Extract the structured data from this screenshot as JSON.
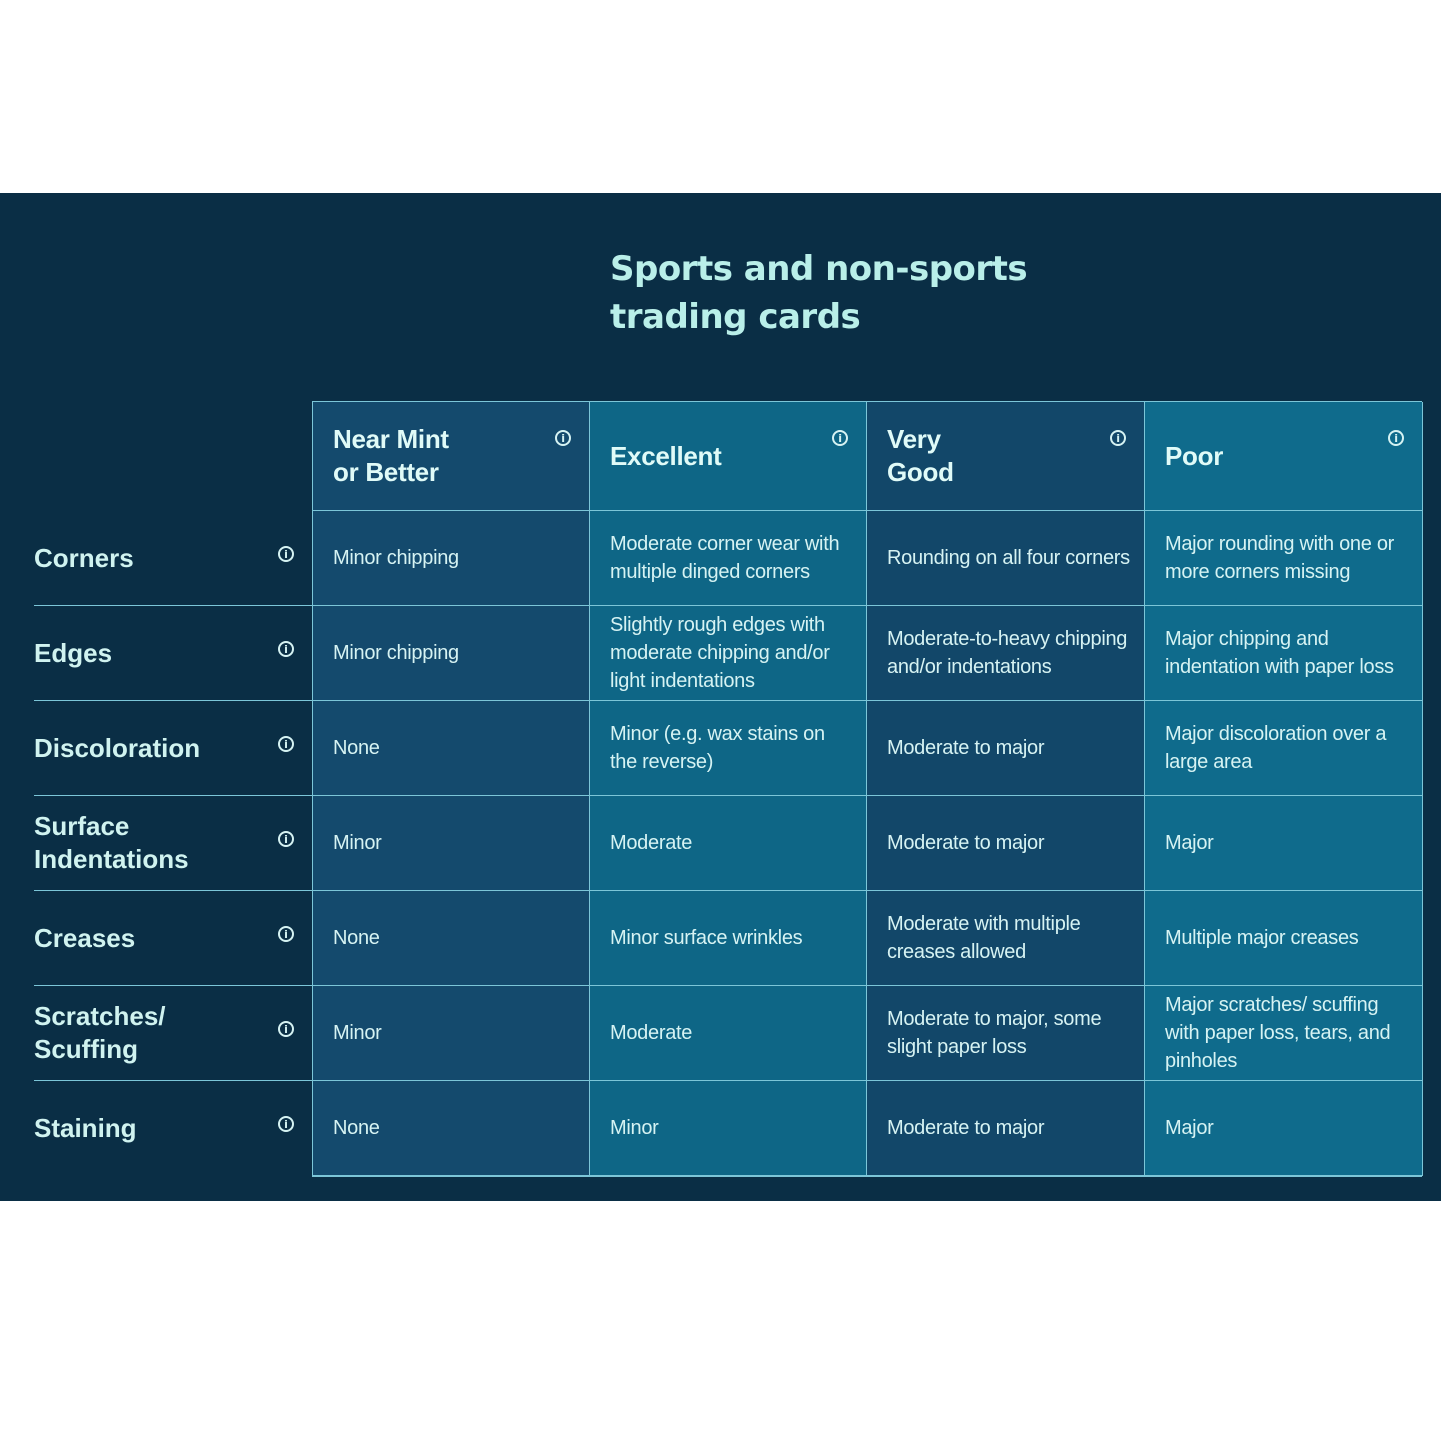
{
  "title_lines": [
    "Sports and non-sports",
    "trading cards"
  ],
  "columns": [
    "Near Mint or Better",
    "Excellent",
    "Very Good",
    "Poor"
  ],
  "column_lines": [
    [
      "Near Mint",
      "or Better"
    ],
    [
      "Excellent"
    ],
    [
      "Very",
      "Good"
    ],
    [
      "Poor"
    ]
  ],
  "rows": [
    {
      "label_lines": [
        "Corners"
      ],
      "cells": [
        "Minor chipping",
        "Moderate corner wear with multiple dinged corners",
        "Rounding on all four corners",
        "Major rounding with one or more corners missing"
      ]
    },
    {
      "label_lines": [
        "Edges"
      ],
      "cells": [
        "Minor chipping",
        "Slightly rough edges with moderate chipping and/or light indentations",
        "Moderate-to-heavy chipping and/or indentations",
        "Major chipping and indentation with paper loss"
      ]
    },
    {
      "label_lines": [
        "Discoloration"
      ],
      "cells": [
        "None",
        "Minor (e.g. wax stains on the reverse)",
        "Moderate to major",
        "Major discoloration over a large area"
      ]
    },
    {
      "label_lines": [
        "Surface",
        "Indentations"
      ],
      "cells": [
        "Minor",
        "Moderate",
        "Moderate to major",
        "Major"
      ]
    },
    {
      "label_lines": [
        "Creases"
      ],
      "cells": [
        "None",
        "Minor surface wrinkles",
        "Moderate with multiple creases allowed",
        "Multiple major creases"
      ]
    },
    {
      "label_lines": [
        "Scratches/",
        "Scuffing"
      ],
      "cells": [
        "Minor",
        "Moderate",
        "Moderate to major, some slight paper loss",
        "Major scratches/ scuffing with paper loss, tears, and pinholes"
      ]
    },
    {
      "label_lines": [
        "Staining"
      ],
      "cells": [
        "None",
        "Minor",
        "Moderate to major",
        "Major"
      ]
    }
  ],
  "info_icon": "i",
  "colors": {
    "panel": "#0a2e45",
    "accent_text": "#b9efe9",
    "border": "#7cc6d8"
  }
}
